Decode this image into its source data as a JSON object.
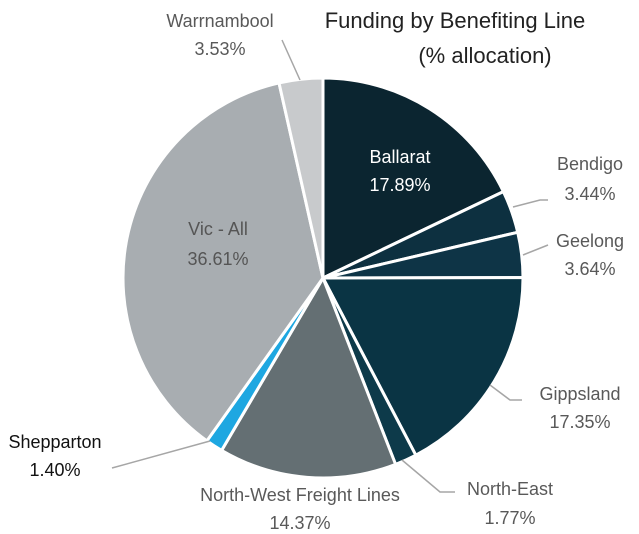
{
  "chart_data": {
    "type": "pie",
    "title": "Funding by Benefiting Line",
    "subtitle": "(% allocation)",
    "categories": [
      "Ballarat",
      "Bendigo",
      "Geelong",
      "Gippsland",
      "North-East",
      "North-West Freight Lines",
      "Shepparton",
      "Vic - All",
      "Warrnambool"
    ],
    "values": [
      17.89,
      3.44,
      3.64,
      17.35,
      1.77,
      14.37,
      1.4,
      36.61,
      3.53
    ],
    "value_labels": [
      "17.89%",
      "3.44%",
      "3.64%",
      "17.35%",
      "1.77%",
      "14.37%",
      "1.40%",
      "36.61%",
      "3.53%"
    ],
    "colors": [
      "#0b2530",
      "#0d3040",
      "#0e3446",
      "#0a3444",
      "#0d3a4a",
      "#646f73",
      "#1ea7e1",
      "#a8adb1",
      "#c8cacc"
    ]
  }
}
